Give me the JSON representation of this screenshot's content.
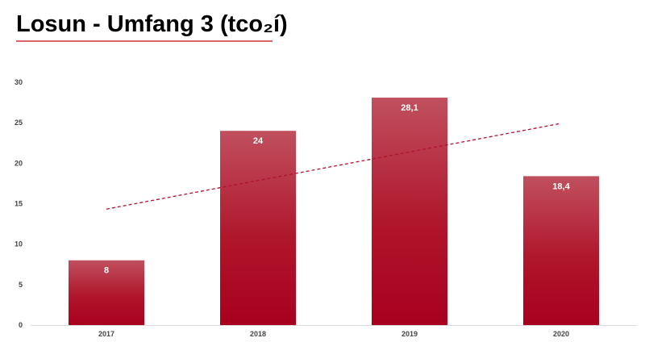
{
  "title": "Losun - Umfang 3 (tco₂í)",
  "chart_data": {
    "type": "bar",
    "categories": [
      "2017",
      "2018",
      "2019",
      "2020"
    ],
    "values": [
      8,
      24,
      28.1,
      18.4
    ],
    "data_labels": [
      "8",
      "24",
      "28,1",
      "18,4"
    ],
    "ylim": [
      0,
      30
    ],
    "yticks": [
      0,
      5,
      10,
      15,
      20,
      25,
      30
    ],
    "trendline": "linear",
    "trendline_style": "dashed",
    "grid": false,
    "bar_color_top": "#c0505e",
    "bar_color_bottom": "#a8001e",
    "trend_color": "#b01030"
  }
}
